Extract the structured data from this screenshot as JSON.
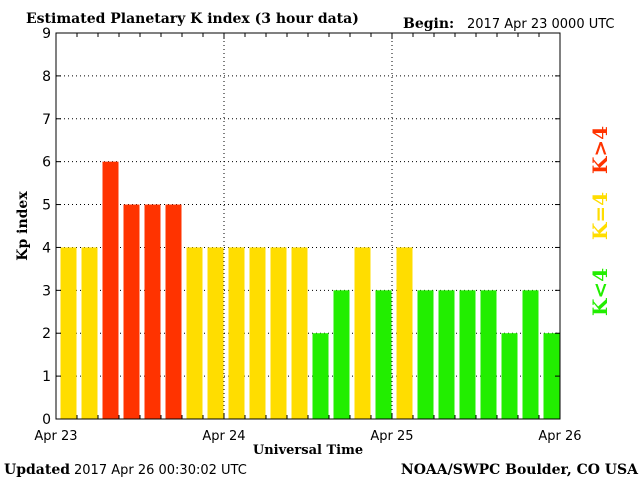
{
  "header": {
    "title": "Estimated Planetary K index (3 hour data)",
    "begin_label": "Begin:",
    "begin_value": "2017 Apr 23 0000 UTC"
  },
  "footer": {
    "updated_label": "Updated",
    "updated_value": "2017 Apr 26 00:30:02 UTC",
    "source": "NOAA/SWPC Boulder, CO USA"
  },
  "legend": {
    "high": {
      "label": "K>4",
      "color": "#ff3300"
    },
    "mid": {
      "label": "K=4",
      "color": "#ffdd00"
    },
    "low": {
      "label": "K<4",
      "color": "#22ee00"
    }
  },
  "chart_data": {
    "type": "bar",
    "title": "Estimated Planetary K index (3 hour data)",
    "xlabel": "Universal Time",
    "ylabel": "Kp index",
    "ylim": [
      0,
      9
    ],
    "yticks": [
      "0",
      "1",
      "2",
      "3",
      "4",
      "5",
      "6",
      "7",
      "8",
      "9"
    ],
    "xticks": [
      "Apr 23",
      "Apr 24",
      "Apr 25",
      "Apr 26"
    ],
    "grid": true,
    "values": [
      4,
      4,
      6,
      5,
      5,
      5,
      4,
      4,
      4,
      4,
      4,
      4,
      2,
      3,
      4,
      3,
      4,
      3,
      3,
      3,
      3,
      2,
      3,
      2
    ],
    "colors": {
      "gt4": "#ff3300",
      "eq4": "#ffdd00",
      "lt4": "#22ee00"
    }
  }
}
